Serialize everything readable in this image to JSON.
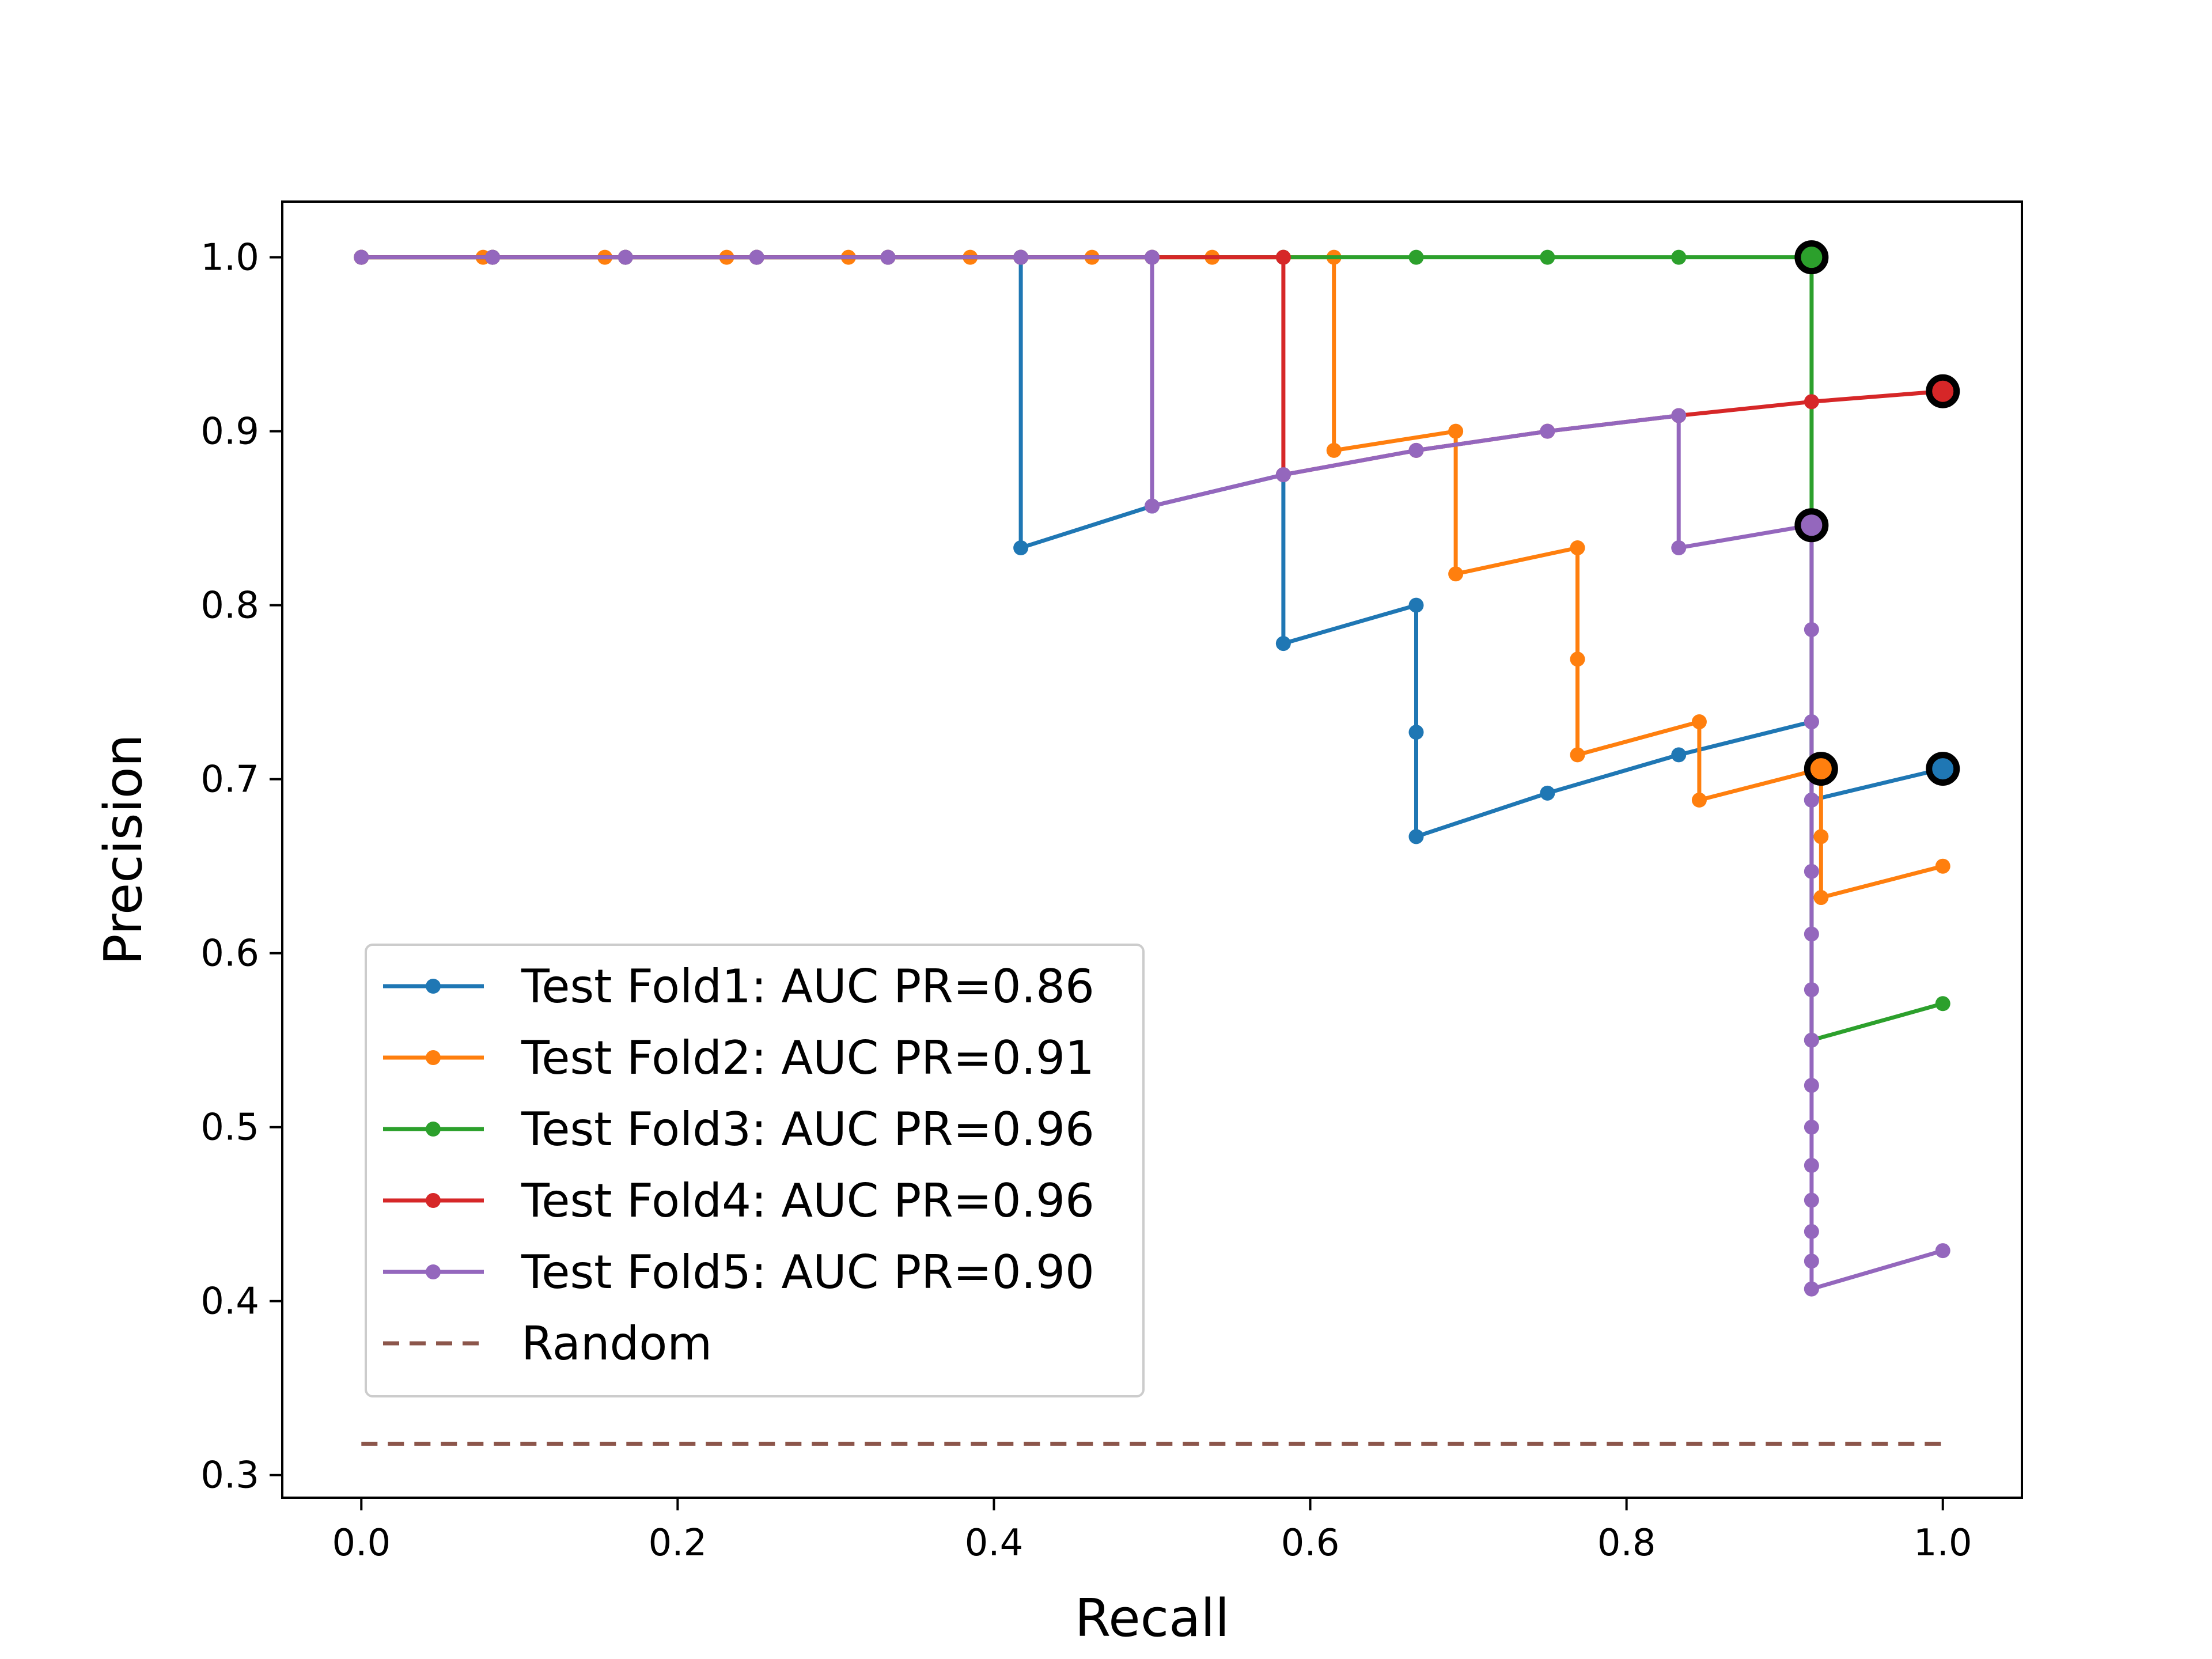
{
  "chart_data": {
    "type": "line",
    "title": "",
    "xlabel": "Recall",
    "ylabel": "Precision",
    "xlim": [
      -0.05,
      1.05
    ],
    "ylim": [
      0.287,
      1.032
    ],
    "xticks": [
      0.0,
      0.2,
      0.4,
      0.6,
      0.8,
      1.0
    ],
    "xtick_labels": [
      "0.0",
      "0.2",
      "0.4",
      "0.6",
      "0.8",
      "1.0"
    ],
    "yticks": [
      0.3,
      0.4,
      0.5,
      0.6,
      0.7,
      0.8,
      0.9,
      1.0
    ],
    "ytick_labels": [
      "0.3",
      "0.4",
      "0.5",
      "0.6",
      "0.7",
      "0.8",
      "0.9",
      "1.0"
    ],
    "grid": false,
    "legend_position": "lower-left",
    "series": [
      {
        "name": "Test Fold1: AUC PR=0.86",
        "color": "#1f77b4",
        "style": "solid-marker",
        "x": [
          0.0,
          0.083,
          0.167,
          0.25,
          0.333,
          0.417,
          0.417,
          0.5,
          0.583,
          0.583,
          0.667,
          0.667,
          0.667,
          0.75,
          0.833,
          0.917,
          0.917,
          1.0
        ],
        "y": [
          1.0,
          1.0,
          1.0,
          1.0,
          1.0,
          1.0,
          0.833,
          0.857,
          0.875,
          0.778,
          0.8,
          0.727,
          0.667,
          0.692,
          0.714,
          0.733,
          0.688,
          0.706
        ],
        "best_point": [
          1.0,
          0.706
        ]
      },
      {
        "name": "Test Fold2: AUC PR=0.91",
        "color": "#ff7f0e",
        "style": "solid-marker",
        "x": [
          0.0,
          0.077,
          0.154,
          0.231,
          0.308,
          0.385,
          0.462,
          0.538,
          0.615,
          0.615,
          0.692,
          0.692,
          0.769,
          0.769,
          0.769,
          0.846,
          0.846,
          0.923,
          0.923,
          0.923,
          1.0
        ],
        "y": [
          1.0,
          1.0,
          1.0,
          1.0,
          1.0,
          1.0,
          1.0,
          1.0,
          1.0,
          0.889,
          0.9,
          0.818,
          0.833,
          0.769,
          0.714,
          0.733,
          0.688,
          0.706,
          0.667,
          0.632,
          0.65
        ],
        "best_point": [
          0.923,
          0.706
        ]
      },
      {
        "name": "Test Fold3: AUC PR=0.96",
        "color": "#2ca02c",
        "style": "solid-marker",
        "x": [
          0.0,
          0.083,
          0.167,
          0.25,
          0.333,
          0.417,
          0.5,
          0.583,
          0.667,
          0.75,
          0.833,
          0.917,
          0.917,
          0.917,
          1.0
        ],
        "y": [
          1.0,
          1.0,
          1.0,
          1.0,
          1.0,
          1.0,
          1.0,
          1.0,
          1.0,
          1.0,
          1.0,
          1.0,
          0.846,
          0.55,
          0.571
        ],
        "best_point": [
          0.917,
          1.0
        ]
      },
      {
        "name": "Test Fold4: AUC PR=0.96",
        "color": "#d62728",
        "style": "solid-marker",
        "x": [
          0.0,
          0.083,
          0.167,
          0.25,
          0.333,
          0.417,
          0.5,
          0.583,
          0.583,
          0.667,
          0.75,
          0.833,
          0.917,
          1.0
        ],
        "y": [
          1.0,
          1.0,
          1.0,
          1.0,
          1.0,
          1.0,
          1.0,
          1.0,
          0.875,
          0.889,
          0.9,
          0.909,
          0.917,
          0.923
        ],
        "best_point": [
          1.0,
          0.923
        ]
      },
      {
        "name": "Test Fold5: AUC PR=0.90",
        "color": "#9467bd",
        "style": "solid-marker",
        "x": [
          0.0,
          0.083,
          0.167,
          0.25,
          0.333,
          0.417,
          0.5,
          0.5,
          0.583,
          0.667,
          0.75,
          0.833,
          0.833,
          0.917,
          0.917,
          0.917,
          0.917,
          0.917,
          0.917,
          0.917,
          0.917,
          0.917,
          0.917,
          0.917,
          0.917,
          0.917,
          0.917,
          0.917,
          0.917,
          1.0
        ],
        "y": [
          1.0,
          1.0,
          1.0,
          1.0,
          1.0,
          1.0,
          1.0,
          0.857,
          0.875,
          0.889,
          0.9,
          0.909,
          0.833,
          0.846,
          0.786,
          0.733,
          0.688,
          0.647,
          0.611,
          0.579,
          0.55,
          0.524,
          0.5,
          0.478,
          0.458,
          0.44,
          0.423,
          0.407,
          0.407,
          0.429
        ],
        "best_point": [
          0.917,
          0.846
        ]
      },
      {
        "name": "Random",
        "color": "#8c564b",
        "style": "dashed",
        "x": [
          0.0,
          1.0
        ],
        "y": [
          0.318,
          0.318
        ]
      }
    ]
  }
}
